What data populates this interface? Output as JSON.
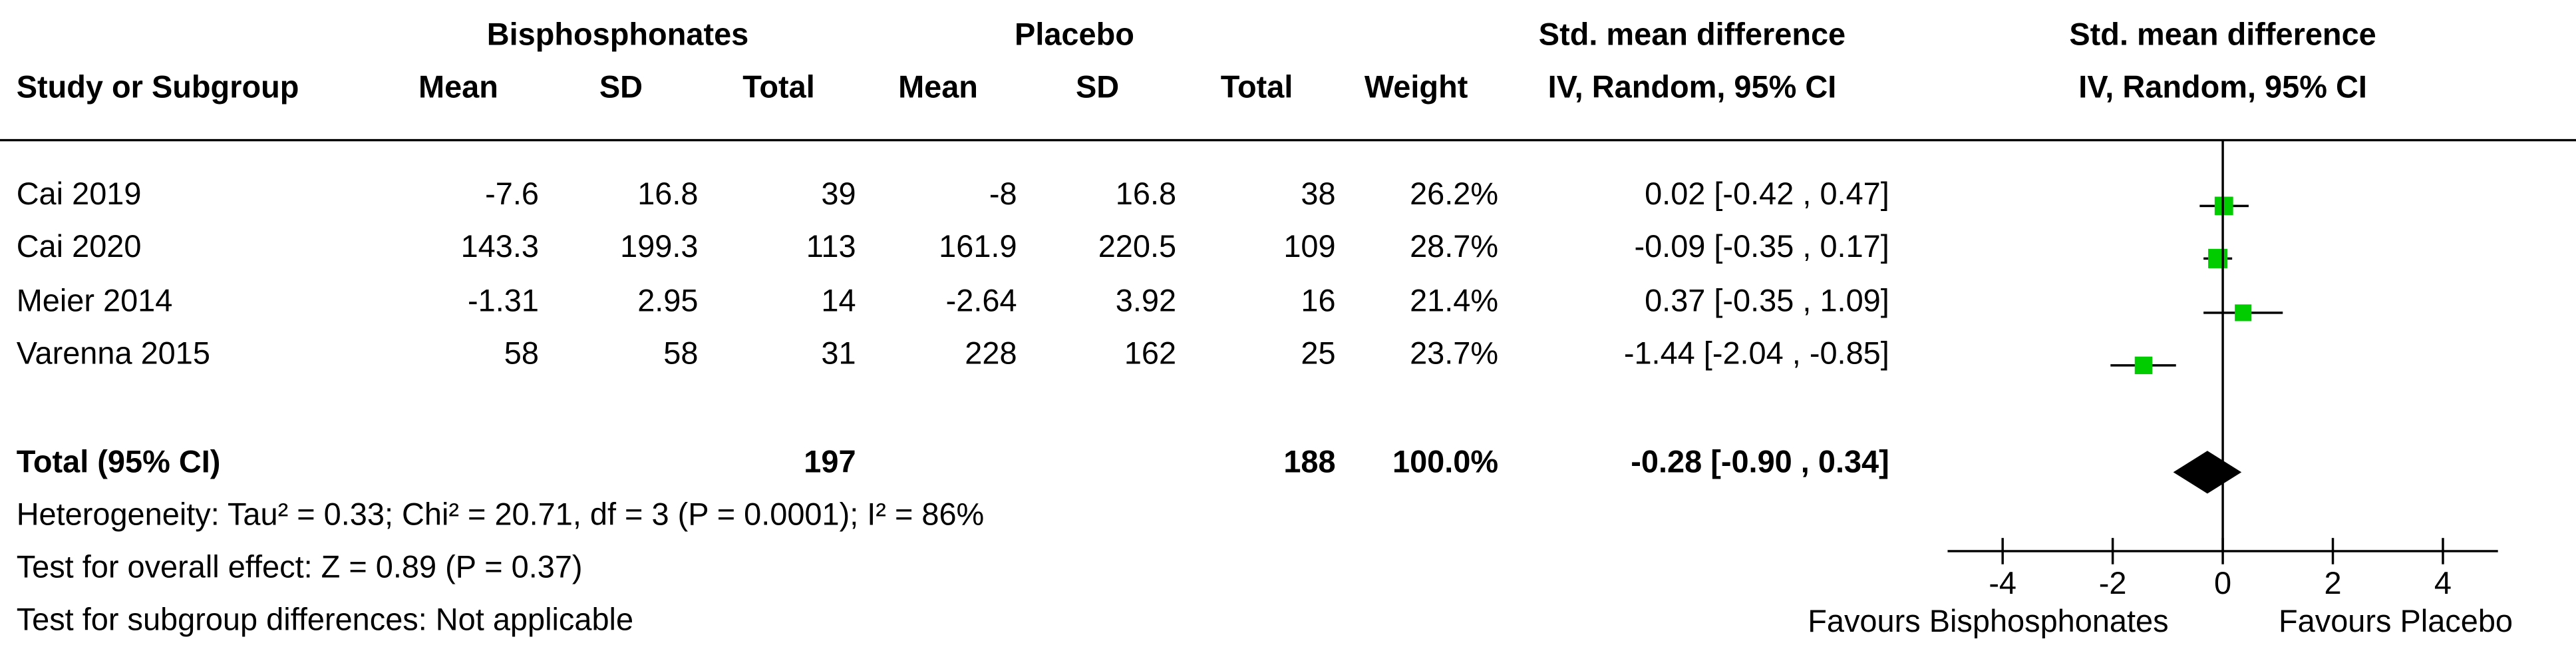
{
  "chart_data": {
    "type": "forest",
    "group_headers": [
      "Bisphosphonates",
      "Placebo"
    ],
    "effect_header": [
      "Std. mean difference",
      "IV, Random, 95% CI"
    ],
    "columns": [
      "Study or Subgroup",
      "Mean",
      "SD",
      "Total",
      "Mean",
      "SD",
      "Total",
      "Weight"
    ],
    "plot_header": [
      "Std. mean difference",
      "IV, Random, 95% CI"
    ],
    "studies": [
      {
        "name": "Cai 2019",
        "mean1": -7.6,
        "sd1": 16.8,
        "n1": 39,
        "mean2": -8,
        "sd2": 16.8,
        "n2": 38,
        "weight": 26.2,
        "weight_label": "26.2%",
        "ci_label": "0.02 [-0.42 , 0.47]",
        "smd": 0.02,
        "lo": -0.42,
        "hi": 0.47
      },
      {
        "name": "Cai 2020",
        "mean1": 143.3,
        "sd1": 199.3,
        "n1": 113,
        "mean2": 161.9,
        "sd2": 220.5,
        "n2": 109,
        "weight": 28.7,
        "weight_label": "28.7%",
        "ci_label": "-0.09 [-0.35 , 0.17]",
        "smd": -0.09,
        "lo": -0.35,
        "hi": 0.17
      },
      {
        "name": "Meier 2014",
        "mean1": -1.31,
        "sd1": 2.95,
        "n1": 14,
        "mean2": -2.64,
        "sd2": 3.92,
        "n2": 16,
        "weight": 21.4,
        "weight_label": "21.4%",
        "ci_label": "0.37 [-0.35 , 1.09]",
        "smd": 0.37,
        "lo": -0.35,
        "hi": 1.09
      },
      {
        "name": "Varenna 2015",
        "mean1": 58,
        "sd1": 58,
        "n1": 31,
        "mean2": 228,
        "sd2": 162,
        "n2": 25,
        "weight": 23.7,
        "weight_label": "23.7%",
        "ci_label": "-1.44 [-2.04 , -0.85]",
        "smd": -1.44,
        "lo": -2.04,
        "hi": -0.85
      }
    ],
    "total": {
      "label": "Total (95% CI)",
      "n1": 197,
      "n2": 188,
      "weight": 100,
      "weight_label": "100.0%",
      "ci_label": "-0.28 [-0.90 , 0.34]",
      "smd": -0.28,
      "lo": -0.9,
      "hi": 0.34
    },
    "notes": [
      "Heterogeneity: Tau² = 0.33; Chi² = 20.71, df = 3 (P = 0.0001); I² = 86%",
      "Test for overall effect: Z = 0.89 (P = 0.37)",
      "Test for subgroup differences: Not applicable"
    ],
    "xlim": [
      -5,
      5
    ],
    "xticks": [
      -4,
      -2,
      0,
      2,
      4
    ],
    "favours": [
      "Favours Bisphosphonates",
      "Favours Placebo"
    ],
    "marker_color": "#00cc00",
    "diamond_color": "#000000"
  }
}
